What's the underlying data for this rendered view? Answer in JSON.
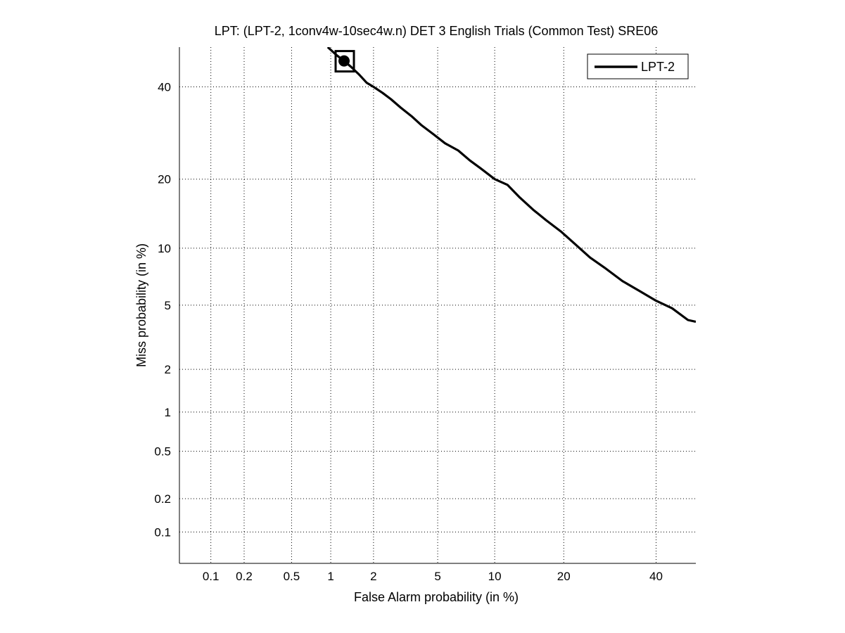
{
  "chart_data": {
    "type": "line",
    "title": "LPT: (LPT-2, 1conv4w-10sec4w.n) DET 3 English Trials (Common Test) SRE06",
    "xlabel": "False Alarm probability (in %)",
    "ylabel": "Miss probability (in %)",
    "x_scale": "normal-deviate (probit)",
    "y_scale": "normal-deviate (probit)",
    "xlim": [
      0.05,
      50
    ],
    "ylim": [
      0.05,
      50
    ],
    "x_ticks": [
      0.1,
      0.2,
      0.5,
      1,
      2,
      5,
      10,
      20,
      40
    ],
    "x_tick_labels": [
      "0.1",
      "0.2",
      "0.5",
      "1",
      "2",
      "5",
      "10",
      "20",
      "40"
    ],
    "y_ticks": [
      0.1,
      0.2,
      0.5,
      1,
      2,
      5,
      10,
      20,
      40
    ],
    "y_tick_labels": [
      "0.1",
      "0.2",
      "0.5",
      "1",
      "2",
      "5",
      "10",
      "20",
      "40"
    ],
    "grid": true,
    "legend_position": "top-right",
    "series": [
      {
        "name": "LPT-2",
        "color": "#000000",
        "x": [
          0.95,
          1.1,
          1.25,
          1.4,
          1.6,
          1.8,
          2.0,
          2.3,
          2.6,
          3.0,
          3.5,
          4.0,
          4.7,
          5.5,
          6.5,
          7.5,
          8.5,
          10.0,
          11.5,
          13.0,
          15.0,
          17.0,
          19.5,
          22.0,
          25.0,
          28.0,
          32.0,
          36.0,
          40.0,
          44.0,
          48.0,
          50.0
        ],
        "y": [
          50.0,
          48.0,
          46.5,
          45.0,
          43.0,
          41.0,
          40.0,
          38.5,
          37.0,
          35.0,
          33.0,
          31.0,
          29.0,
          27.0,
          25.5,
          23.5,
          22.0,
          20.0,
          19.0,
          17.0,
          15.0,
          13.5,
          12.0,
          10.5,
          9.0,
          8.0,
          6.8,
          6.0,
          5.3,
          4.8,
          4.1,
          4.0
        ]
      }
    ],
    "operating_point": {
      "series": "LPT-2",
      "x": 1.25,
      "y": 46.5,
      "marker": "filled-circle-in-square"
    }
  }
}
